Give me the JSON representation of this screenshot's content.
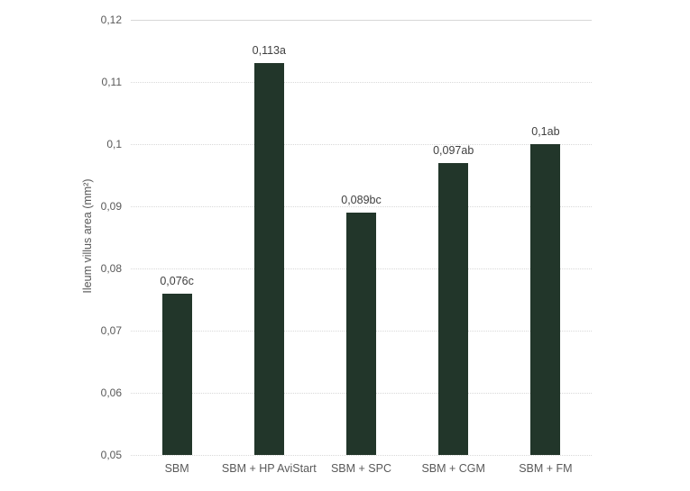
{
  "chart_data": {
    "type": "bar",
    "title": "",
    "xlabel": "",
    "ylabel": "Ileum villus area (mm²)",
    "categories": [
      "SBM",
      "SBM + HP AviStart",
      "SBM + SPC",
      "SBM + CGM",
      "SBM + FM"
    ],
    "values": [
      0.076,
      0.113,
      0.089,
      0.097,
      0.1
    ],
    "bar_labels": [
      "0,076c",
      "0,113a",
      "0,089bc",
      "0,097ab",
      "0,1ab"
    ],
    "ylim": [
      0.05,
      0.12
    ],
    "ytick_step": 0.01,
    "ytick_labels": [
      "0,05",
      "0,06",
      "0,07",
      "0,08",
      "0,09",
      "0,1",
      "0,11",
      "0,12"
    ],
    "legend_position": "none",
    "grid": "horizontal-dotted",
    "colors": {
      "bar": "#22362a",
      "gridline": "#d9d9d9",
      "tick_text": "#595959",
      "label_text": "#404040",
      "background": "#ffffff"
    }
  }
}
